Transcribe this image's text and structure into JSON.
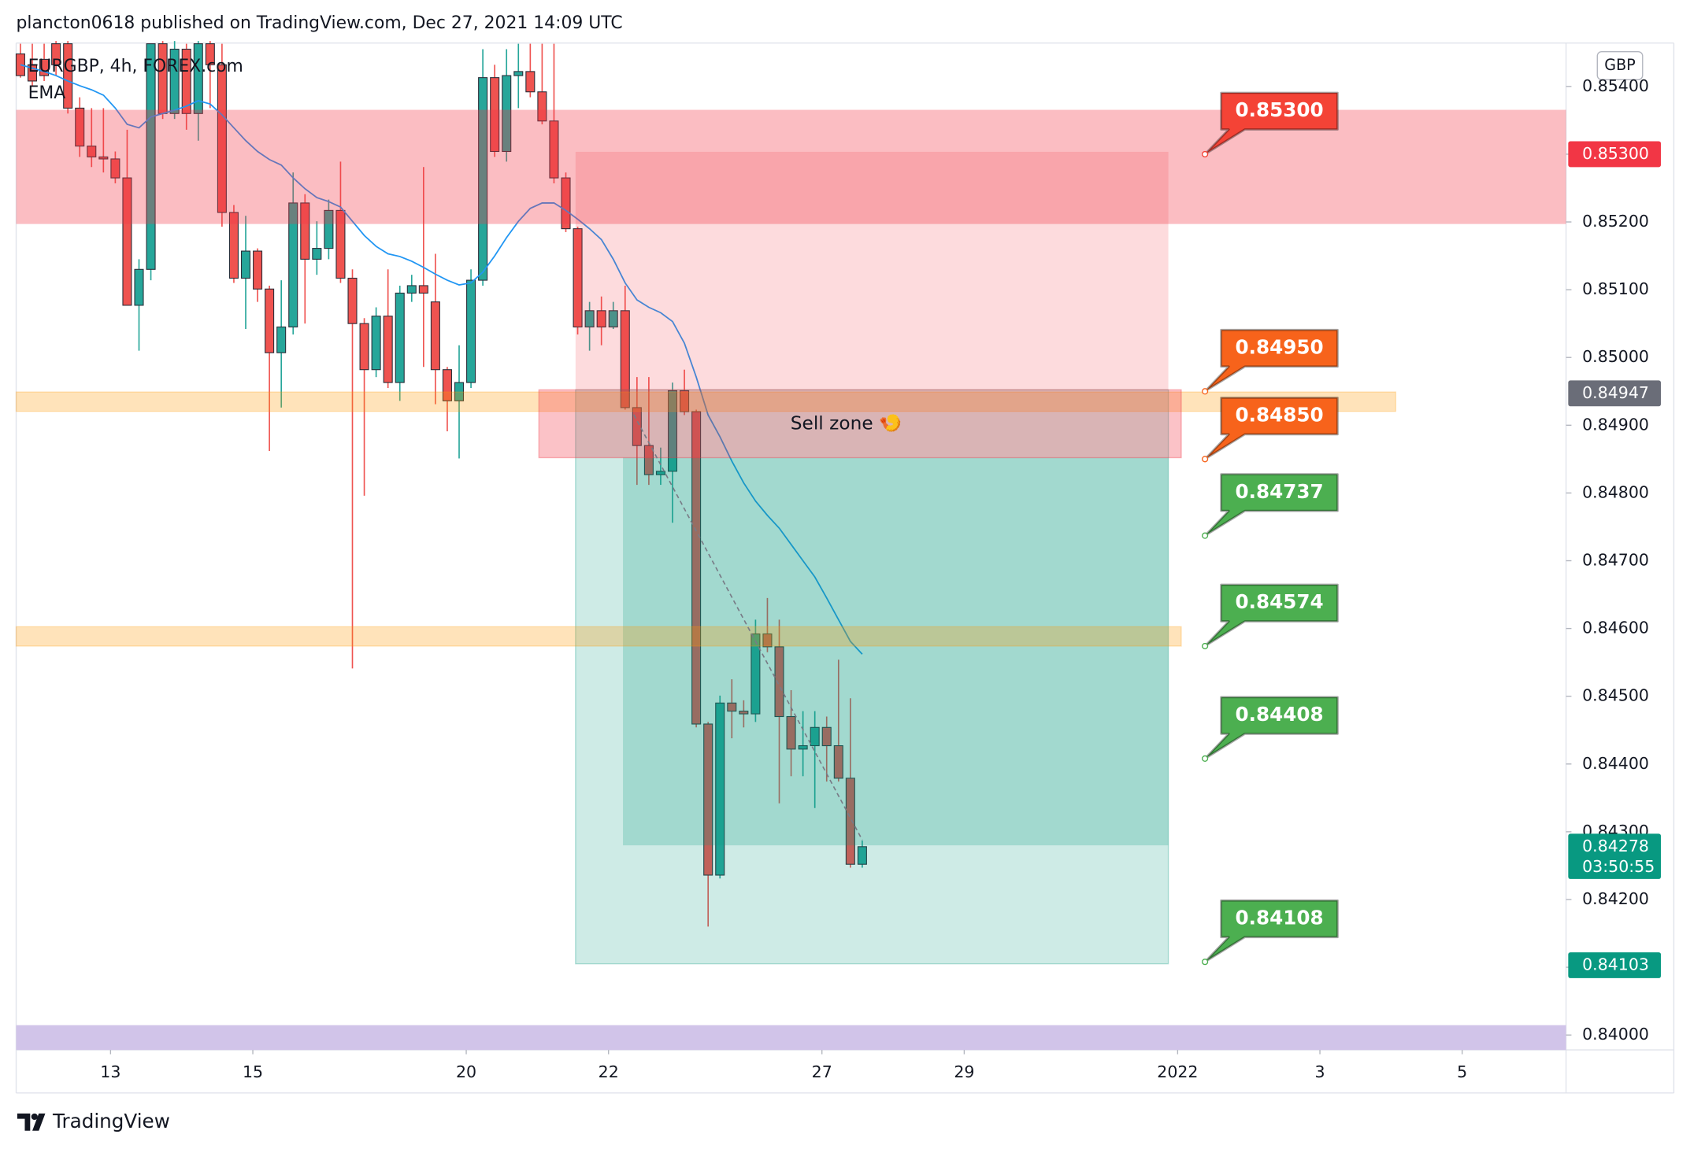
{
  "header": {
    "text": "plancton0618 published on TradingView.com, Dec 27, 2021 14:09 UTC"
  },
  "footer": {
    "brand": "TradingView"
  },
  "chart_data": {
    "type": "candlestick",
    "title": "EURGBP, 4h, FOREX.com",
    "currency": "GBP",
    "zone_label": "Sell zone 🍤",
    "up_color": "#26a69a",
    "down_color": "#ef5350",
    "border_color": "#2a2e39",
    "grid": false,
    "xlim": [
      -0.36,
      130.36
    ],
    "ylim": [
      0.83978,
      0.85464
    ],
    "xticks": [
      {
        "value": 7.6,
        "label": "13"
      },
      {
        "value": 19.6,
        "label": "15"
      },
      {
        "value": 37.6,
        "label": "20"
      },
      {
        "value": 49.6,
        "label": "22"
      },
      {
        "value": 67.6,
        "label": "27"
      },
      {
        "value": 79.6,
        "label": "29"
      },
      {
        "value": 97.6,
        "label": "2022"
      },
      {
        "value": 109.6,
        "label": "3"
      },
      {
        "value": 121.6,
        "label": "5"
      }
    ],
    "yticks": [
      {
        "value": 0.854,
        "label": "0.85400"
      },
      {
        "value": 0.853,
        "label": "0.85300"
      },
      {
        "value": 0.852,
        "label": "0.85200"
      },
      {
        "value": 0.851,
        "label": "0.85100"
      },
      {
        "value": 0.85,
        "label": "0.85000"
      },
      {
        "value": 0.849,
        "label": "0.84900"
      },
      {
        "value": 0.848,
        "label": "0.84800"
      },
      {
        "value": 0.847,
        "label": "0.84700"
      },
      {
        "value": 0.846,
        "label": "0.84600"
      },
      {
        "value": 0.845,
        "label": "0.84500"
      },
      {
        "value": 0.844,
        "label": "0.84400"
      },
      {
        "value": 0.843,
        "label": "0.84300"
      },
      {
        "value": 0.842,
        "label": "0.84200"
      },
      {
        "value": 0.841,
        "label": "0.84100"
      },
      {
        "value": 0.84,
        "label": "0.84000"
      }
    ],
    "open": [
      0.85448,
      0.85432,
      0.8544,
      0.85463,
      0.85463,
      0.85368,
      0.85312,
      0.85296,
      0.85293,
      0.85265,
      0.85077,
      0.8513,
      0.85463,
      0.8536,
      0.85455,
      0.8536,
      0.85463,
      0.85432,
      0.85214,
      0.85117,
      0.85157,
      0.85101,
      0.85007,
      0.85045,
      0.85228,
      0.85145,
      0.85161,
      0.85217,
      0.85117,
      0.8505,
      0.84982,
      0.85061,
      0.84963,
      0.85095,
      0.85106,
      0.85082,
      0.84982,
      0.84936,
      0.84963,
      0.85114,
      0.85413,
      0.85304,
      0.85416,
      0.85422,
      0.85392,
      0.85349,
      0.85265,
      0.8519,
      0.85045,
      0.85069,
      0.85045,
      0.85069,
      0.84926,
      0.8487,
      0.84827,
      0.84832,
      0.84951,
      0.8492,
      0.84459,
      0.84236,
      0.8449,
      0.84478,
      0.84474,
      0.84592,
      0.84573,
      0.8447,
      0.84422,
      0.84427,
      0.84454,
      0.84427,
      0.84379,
      0.84252
    ],
    "high": [
      0.85463,
      0.85463,
      0.85463,
      0.85467,
      0.85467,
      0.85384,
      0.85368,
      0.85368,
      0.85304,
      0.85336,
      0.85145,
      0.85463,
      0.85467,
      0.85467,
      0.85463,
      0.85467,
      0.85467,
      0.85463,
      0.85225,
      0.85209,
      0.85161,
      0.85106,
      0.85114,
      0.85273,
      0.85241,
      0.85201,
      0.85233,
      0.85289,
      0.8513,
      0.85058,
      0.85074,
      0.8513,
      0.85106,
      0.85122,
      0.85281,
      0.85153,
      0.84986,
      0.85018,
      0.8513,
      0.85455,
      0.85432,
      0.85455,
      0.85463,
      0.85463,
      0.85463,
      0.85463,
      0.85273,
      0.85193,
      0.85082,
      0.8509,
      0.85082,
      0.85106,
      0.84971,
      0.84971,
      0.84867,
      0.84963,
      0.84982,
      0.84923,
      0.84462,
      0.84501,
      0.84525,
      0.84494,
      0.84613,
      0.84645,
      0.84613,
      0.84509,
      0.84478,
      0.84478,
      0.8447,
      0.84554,
      0.84497,
      0.84287
    ],
    "low": [
      0.85413,
      0.854,
      0.85408,
      0.85416,
      0.8536,
      0.85296,
      0.85281,
      0.85273,
      0.85257,
      0.85077,
      0.8501,
      0.85114,
      0.85352,
      0.85352,
      0.85336,
      0.8532,
      0.85368,
      0.85193,
      0.8511,
      0.85042,
      0.85082,
      0.84862,
      0.84926,
      0.85034,
      0.8505,
      0.85122,
      0.85145,
      0.8511,
      0.84541,
      0.84796,
      0.84971,
      0.84955,
      0.84936,
      0.85082,
      0.84986,
      0.84931,
      0.84891,
      0.84851,
      0.84955,
      0.85106,
      0.85296,
      0.85289,
      0.85368,
      0.85384,
      0.85344,
      0.85257,
      0.85185,
      0.85034,
      0.8501,
      0.85018,
      0.85042,
      0.84923,
      0.84812,
      0.84812,
      0.84812,
      0.84756,
      0.84915,
      0.84454,
      0.8416,
      0.84231,
      0.84438,
      0.84454,
      0.84462,
      0.84565,
      0.84342,
      0.84382,
      0.84382,
      0.84335,
      0.84374,
      0.84374,
      0.84247,
      0.84247
    ],
    "close": [
      0.85416,
      0.85408,
      0.85416,
      0.85432,
      0.85368,
      0.85312,
      0.85296,
      0.85293,
      0.85265,
      0.85077,
      0.8513,
      0.85463,
      0.8536,
      0.85455,
      0.8536,
      0.85463,
      0.85432,
      0.85214,
      0.85117,
      0.85157,
      0.85101,
      0.85007,
      0.85045,
      0.85228,
      0.85145,
      0.85161,
      0.85217,
      0.85117,
      0.8505,
      0.84982,
      0.85061,
      0.84963,
      0.85095,
      0.85106,
      0.85095,
      0.84982,
      0.84936,
      0.84963,
      0.85114,
      0.85413,
      0.85304,
      0.85416,
      0.85422,
      0.85392,
      0.85349,
      0.85265,
      0.8519,
      0.85045,
      0.85069,
      0.85045,
      0.85069,
      0.84926,
      0.8487,
      0.84827,
      0.84832,
      0.84951,
      0.8492,
      0.84459,
      0.84236,
      0.8449,
      0.84478,
      0.84474,
      0.84592,
      0.84573,
      0.8447,
      0.84422,
      0.84427,
      0.84454,
      0.84427,
      0.84379,
      0.84252,
      0.84278
    ],
    "ema": {
      "name": "EMA",
      "color": "#2196f3",
      "values": [
        0.85432,
        0.85427,
        0.85422,
        0.85416,
        0.85408,
        0.85401,
        0.85395,
        0.85387,
        0.85368,
        0.85344,
        0.85339,
        0.85355,
        0.8536,
        0.85365,
        0.85371,
        0.85379,
        0.85374,
        0.85358,
        0.85339,
        0.8532,
        0.85304,
        0.85292,
        0.85284,
        0.85265,
        0.85249,
        0.85236,
        0.8523,
        0.85222,
        0.85201,
        0.8518,
        0.85164,
        0.85153,
        0.85149,
        0.85142,
        0.85133,
        0.85123,
        0.85114,
        0.85107,
        0.8511,
        0.85126,
        0.8515,
        0.85177,
        0.85201,
        0.8522,
        0.85228,
        0.85228,
        0.85217,
        0.85204,
        0.8519,
        0.85174,
        0.85145,
        0.8511,
        0.85085,
        0.85074,
        0.85066,
        0.85053,
        0.85021,
        0.84971,
        0.84915,
        0.84883,
        0.84847,
        0.84815,
        0.84788,
        0.84767,
        0.84748,
        0.84724,
        0.847,
        0.84676,
        0.84645,
        0.84613,
        0.84581,
        0.84562
      ]
    },
    "callouts": [
      {
        "value": 0.853,
        "label": "0.85300",
        "color": "#f44336"
      },
      {
        "value": 0.8495,
        "label": "0.84950",
        "color": "#f7631b"
      },
      {
        "value": 0.8485,
        "label": "0.84850",
        "color": "#f7631b"
      },
      {
        "value": 0.84737,
        "label": "0.84737",
        "color": "#4caf50"
      },
      {
        "value": 0.84574,
        "label": "0.84574",
        "color": "#4caf50"
      },
      {
        "value": 0.84408,
        "label": "0.84408",
        "color": "#4caf50"
      },
      {
        "value": 0.84108,
        "label": "0.84108",
        "color": "#4caf50"
      }
    ],
    "axis_markers": [
      {
        "value": 0.853,
        "label": "0.85300",
        "color": "#f23645"
      },
      {
        "value": 0.84947,
        "label": "0.84947",
        "color": "#6a6d78"
      },
      {
        "value": 0.84278,
        "label": "0.84278",
        "sublabel": "03:50:55",
        "color": "#089981"
      },
      {
        "value": 0.84103,
        "label": "0.84103",
        "color": "#089981"
      }
    ]
  }
}
